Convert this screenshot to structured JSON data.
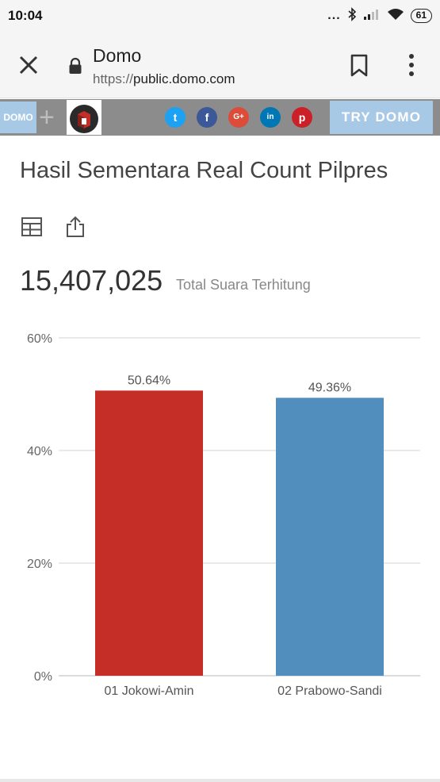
{
  "status_bar": {
    "time": "10:04",
    "dots": "...",
    "battery": "61",
    "icons": [
      "bluetooth-icon",
      "signal-icon",
      "wifi-icon",
      "battery-icon"
    ]
  },
  "browser": {
    "title": "Domo",
    "url_prefix": "https://",
    "url_domain": "public.domo.com",
    "icons": [
      "close-icon",
      "lock-icon",
      "bookmark-icon",
      "more-vert-icon"
    ]
  },
  "banner": {
    "logo_text": "DOMO",
    "plus": "+",
    "social": [
      {
        "name": "twitter",
        "glyph": "t",
        "color": "#1da1f2"
      },
      {
        "name": "facebook",
        "glyph": "f",
        "color": "#3b5998"
      },
      {
        "name": "google-plus",
        "glyph": "G+",
        "color": "#dd4b39"
      },
      {
        "name": "linkedin",
        "glyph": "in",
        "color": "#0077b5"
      },
      {
        "name": "pinterest",
        "glyph": "p",
        "color": "#cb2027"
      }
    ],
    "try_label": "TRY DOMO"
  },
  "card": {
    "title": "Hasil Sementara Real Count Pilpres",
    "total_value": "15,407,025",
    "total_label": "Total Suara Terhitung",
    "icons": [
      "table-icon",
      "share-icon"
    ]
  },
  "chart_data": {
    "type": "bar",
    "categories": [
      "01 Jokowi-Amin",
      "02 Prabowo-Sandi"
    ],
    "values": [
      50.64,
      49.36
    ],
    "data_labels": [
      "50.64%",
      "49.36%"
    ],
    "colors": [
      "#c52e26",
      "#518dbd"
    ],
    "ylim": [
      0,
      60
    ],
    "yticks": [
      0,
      20,
      40,
      60
    ],
    "ytick_labels": [
      "0%",
      "20%",
      "40%",
      "60%"
    ],
    "grid": true
  }
}
